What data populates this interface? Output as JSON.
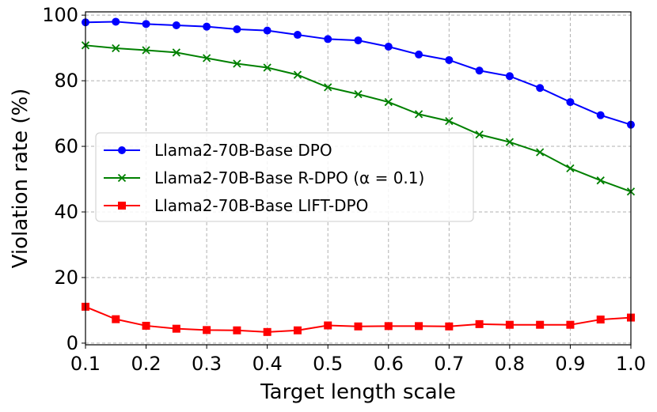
{
  "chart_data": {
    "type": "line",
    "title": "",
    "xlabel": "Target length scale",
    "ylabel": "Violation rate (%)",
    "xlim": [
      0.1,
      1.0
    ],
    "ylim": [
      -0.5,
      101
    ],
    "x_ticks": [
      "0.1",
      "0.2",
      "0.3",
      "0.4",
      "0.5",
      "0.6",
      "0.7",
      "0.8",
      "0.9",
      "1.0"
    ],
    "y_ticks": [
      "0",
      "20",
      "40",
      "60",
      "80",
      "100"
    ],
    "grid": true,
    "legend_position": "center-left",
    "x": [
      0.1,
      0.15,
      0.2,
      0.25,
      0.3,
      0.35,
      0.4,
      0.45,
      0.5,
      0.55,
      0.6,
      0.65,
      0.7,
      0.75,
      0.8,
      0.85,
      0.9,
      0.95,
      1.0
    ],
    "series": [
      {
        "name": "Llama2-70B-Base DPO",
        "color": "#0000ff",
        "marker": "circle",
        "values": [
          97.8,
          98.0,
          97.3,
          96.9,
          96.5,
          95.7,
          95.3,
          94.0,
          92.7,
          92.3,
          90.4,
          88.0,
          86.3,
          83.1,
          81.4,
          77.8,
          73.5,
          69.5,
          66.6
        ]
      },
      {
        "name": "Llama2-70B-Base R-DPO (α = 0.1)",
        "color": "#008000",
        "marker": "x",
        "values": [
          90.8,
          89.9,
          89.3,
          88.6,
          86.9,
          85.2,
          84.0,
          81.8,
          78.0,
          75.9,
          73.5,
          69.8,
          67.7,
          63.6,
          61.3,
          58.2,
          53.3,
          49.6,
          46.2
        ]
      },
      {
        "name": "Llama2-70B-Base LIFT-DPO",
        "color": "#ff0000",
        "marker": "square",
        "values": [
          11.1,
          7.3,
          5.3,
          4.4,
          4.0,
          3.9,
          3.4,
          3.9,
          5.4,
          5.1,
          5.2,
          5.2,
          5.1,
          5.8,
          5.6,
          5.6,
          5.6,
          7.2,
          7.8
        ]
      }
    ]
  }
}
